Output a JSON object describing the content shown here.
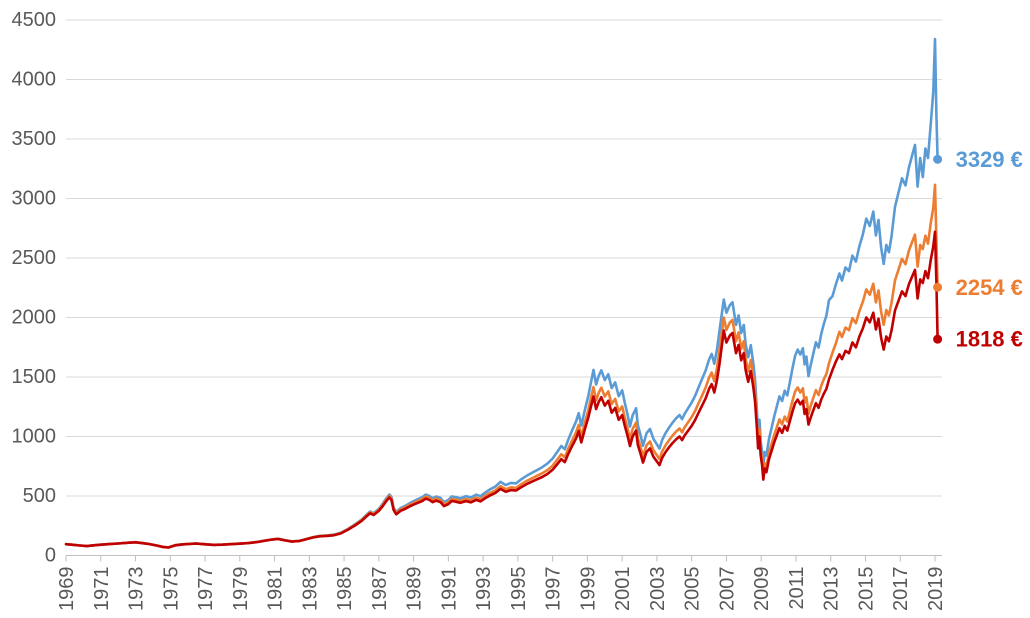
{
  "chart_data": {
    "type": "line",
    "title": "",
    "unit": "€",
    "legend_position": "right-end-labels",
    "grid": true,
    "y_axis": {
      "ticks": [
        0,
        500,
        1000,
        1500,
        2000,
        2500,
        3000,
        3500,
        4000,
        4500
      ],
      "range": [
        0,
        4500
      ]
    },
    "x_axis": {
      "tick_years": [
        1969,
        1971,
        1973,
        1975,
        1977,
        1979,
        1981,
        1983,
        1985,
        1987,
        1989,
        1991,
        1993,
        1995,
        1997,
        1999,
        2001,
        2003,
        2005,
        2007,
        2009,
        2011,
        2013,
        2015,
        2017,
        2019
      ],
      "range_years": [
        1969,
        2019.2
      ]
    },
    "series": [
      {
        "id": "blue",
        "color": "#5B9BD5",
        "end_label": "3329 €",
        "final_value": 3329
      },
      {
        "id": "orange",
        "color": "#ED7D31",
        "end_label": "2254 €",
        "final_value": 2254
      },
      {
        "id": "red",
        "color": "#C00000",
        "end_label": "1818 €",
        "final_value": 1818
      }
    ],
    "points_columns": [
      "year",
      "blue",
      "orange",
      "red"
    ],
    "points": [
      [
        1969.0,
        95,
        95,
        95
      ],
      [
        1969.4,
        90,
        90,
        90
      ],
      [
        1969.8,
        84,
        84,
        84
      ],
      [
        1970.2,
        79,
        79,
        79
      ],
      [
        1970.6,
        86,
        86,
        86
      ],
      [
        1971.0,
        91,
        91,
        91
      ],
      [
        1971.5,
        96,
        96,
        96
      ],
      [
        1972.0,
        101,
        101,
        101
      ],
      [
        1972.5,
        107,
        107,
        107
      ],
      [
        1973.0,
        112,
        112,
        111
      ],
      [
        1973.4,
        104,
        104,
        103
      ],
      [
        1973.8,
        97,
        97,
        96
      ],
      [
        1974.2,
        85,
        85,
        84
      ],
      [
        1974.6,
        72,
        72,
        71
      ],
      [
        1974.9,
        68,
        68,
        67
      ],
      [
        1975.3,
        87,
        87,
        86
      ],
      [
        1975.7,
        94,
        94,
        93
      ],
      [
        1976.1,
        98,
        98,
        97
      ],
      [
        1976.5,
        101,
        101,
        100
      ],
      [
        1977.0,
        95,
        95,
        94
      ],
      [
        1977.5,
        90,
        90,
        89
      ],
      [
        1978.0,
        92,
        92,
        91
      ],
      [
        1978.5,
        96,
        96,
        95
      ],
      [
        1979.0,
        100,
        100,
        99
      ],
      [
        1979.5,
        105,
        105,
        104
      ],
      [
        1980.0,
        114,
        114,
        113
      ],
      [
        1980.4,
        124,
        124,
        123
      ],
      [
        1980.8,
        134,
        134,
        133
      ],
      [
        1981.2,
        141,
        140,
        139
      ],
      [
        1981.6,
        129,
        128,
        127
      ],
      [
        1982.0,
        119,
        118,
        117
      ],
      [
        1982.4,
        123,
        122,
        121
      ],
      [
        1982.8,
        138,
        137,
        135
      ],
      [
        1983.2,
        154,
        153,
        151
      ],
      [
        1983.6,
        165,
        163,
        161
      ],
      [
        1984.0,
        169,
        167,
        165
      ],
      [
        1984.4,
        175,
        172,
        170
      ],
      [
        1984.8,
        191,
        188,
        185
      ],
      [
        1985.2,
        222,
        219,
        215
      ],
      [
        1985.6,
        259,
        255,
        250
      ],
      [
        1986.0,
        301,
        296,
        290
      ],
      [
        1986.3,
        343,
        337,
        330
      ],
      [
        1986.5,
        370,
        363,
        355
      ],
      [
        1986.7,
        355,
        348,
        340
      ],
      [
        1987.0,
        392,
        384,
        375
      ],
      [
        1987.2,
        430,
        420,
        410
      ],
      [
        1987.4,
        475,
        464,
        452
      ],
      [
        1987.6,
        513,
        500,
        487
      ],
      [
        1987.72,
        493,
        481,
        468
      ],
      [
        1987.85,
        403,
        393,
        382
      ],
      [
        1988.0,
        366,
        356,
        346
      ],
      [
        1988.25,
        398,
        387,
        376
      ],
      [
        1988.5,
        415,
        403,
        391
      ],
      [
        1988.75,
        437,
        424,
        411
      ],
      [
        1989.0,
        456,
        442,
        428
      ],
      [
        1989.25,
        473,
        458,
        443
      ],
      [
        1989.5,
        490,
        474,
        458
      ],
      [
        1989.7,
        512,
        495,
        478
      ],
      [
        1989.9,
        501,
        484,
        468
      ],
      [
        1990.1,
        481,
        464,
        448
      ],
      [
        1990.3,
        496,
        478,
        461
      ],
      [
        1990.55,
        483,
        465,
        449
      ],
      [
        1990.75,
        448,
        430,
        415
      ],
      [
        1991.0,
        467,
        448,
        432
      ],
      [
        1991.2,
        497,
        476,
        459
      ],
      [
        1991.45,
        489,
        468,
        451
      ],
      [
        1991.7,
        481,
        460,
        443
      ],
      [
        1992.0,
        498,
        475,
        457
      ],
      [
        1992.3,
        488,
        465,
        447
      ],
      [
        1992.6,
        511,
        486,
        467
      ],
      [
        1992.85,
        498,
        473,
        455
      ],
      [
        1993.1,
        527,
        500,
        480
      ],
      [
        1993.4,
        556,
        526,
        505
      ],
      [
        1993.7,
        579,
        547,
        525
      ],
      [
        1994.0,
        619,
        583,
        560
      ],
      [
        1994.3,
        592,
        557,
        535
      ],
      [
        1994.6,
        610,
        573,
        550
      ],
      [
        1994.9,
        606,
        568,
        545
      ],
      [
        1995.2,
        641,
        600,
        575
      ],
      [
        1995.5,
        670,
        627,
        600
      ],
      [
        1995.8,
        694,
        648,
        620
      ],
      [
        1996.1,
        718,
        670,
        640
      ],
      [
        1996.4,
        742,
        691,
        660
      ],
      [
        1996.7,
        772,
        718,
        685
      ],
      [
        1997.0,
        814,
        755,
        720
      ],
      [
        1997.25,
        867,
        803,
        765
      ],
      [
        1997.5,
        920,
        851,
        810
      ],
      [
        1997.7,
        893,
        825,
        785
      ],
      [
        1997.9,
        974,
        899,
        855
      ],
      [
        1998.1,
        1045,
        962,
        915
      ],
      [
        1998.35,
        1128,
        1036,
        985
      ],
      [
        1998.5,
        1196,
        1098,
        1045
      ],
      [
        1998.65,
        1092,
        1000,
        950
      ],
      [
        1998.85,
        1221,
        1116,
        1060
      ],
      [
        1999.05,
        1340,
        1222,
        1160
      ],
      [
        1999.2,
        1452,
        1322,
        1250
      ],
      [
        1999.35,
        1560,
        1415,
        1336
      ],
      [
        1999.5,
        1437,
        1303,
        1230
      ],
      [
        1999.65,
        1508,
        1367,
        1290
      ],
      [
        1999.8,
        1556,
        1410,
        1330
      ],
      [
        2000.0,
        1475,
        1336,
        1260
      ],
      [
        2000.2,
        1523,
        1379,
        1300
      ],
      [
        2000.4,
        1407,
        1273,
        1200
      ],
      [
        2000.6,
        1455,
        1316,
        1240
      ],
      [
        2000.8,
        1339,
        1210,
        1140
      ],
      [
        2001.0,
        1387,
        1253,
        1180
      ],
      [
        2001.15,
        1282,
        1158,
        1090
      ],
      [
        2001.3,
        1189,
        1073,
        1010
      ],
      [
        2001.45,
        1083,
        978,
        920
      ],
      [
        2001.6,
        1178,
        1063,
        1000
      ],
      [
        2001.8,
        1238,
        1117,
        1050
      ],
      [
        2001.9,
        1097,
        989,
        930
      ],
      [
        2002.05,
        1015,
        915,
        860
      ],
      [
        2002.2,
        922,
        831,
        781
      ],
      [
        2002.4,
        1027,
        926,
        870
      ],
      [
        2002.6,
        1063,
        958,
        900
      ],
      [
        2002.8,
        981,
        884,
        830
      ],
      [
        2003.0,
        934,
        842,
        790
      ],
      [
        2003.15,
        899,
        810,
        760
      ],
      [
        2003.3,
        970,
        874,
        820
      ],
      [
        2003.5,
        1029,
        927,
        870
      ],
      [
        2003.7,
        1076,
        970,
        910
      ],
      [
        2003.9,
        1117,
        1008,
        945
      ],
      [
        2004.1,
        1152,
        1040,
        975
      ],
      [
        2004.3,
        1181,
        1067,
        1000
      ],
      [
        2004.45,
        1146,
        1035,
        970
      ],
      [
        2004.6,
        1192,
        1078,
        1010
      ],
      [
        2004.8,
        1239,
        1121,
        1050
      ],
      [
        2005.0,
        1286,
        1164,
        1090
      ],
      [
        2005.2,
        1344,
        1217,
        1140
      ],
      [
        2005.4,
        1414,
        1281,
        1200
      ],
      [
        2005.6,
        1484,
        1345,
        1260
      ],
      [
        2005.8,
        1554,
        1410,
        1320
      ],
      [
        2006.0,
        1647,
        1495,
        1400
      ],
      [
        2006.15,
        1694,
        1538,
        1440
      ],
      [
        2006.3,
        1611,
        1464,
        1370
      ],
      [
        2006.45,
        1727,
        1571,
        1470
      ],
      [
        2006.6,
        1890,
        1720,
        1610
      ],
      [
        2006.85,
        2150,
        2000,
        1890
      ],
      [
        2007.0,
        2040,
        1895,
        1790
      ],
      [
        2007.2,
        2105,
        1959,
        1850
      ],
      [
        2007.35,
        2128,
        1980,
        1870
      ],
      [
        2007.55,
        1938,
        1800,
        1700
      ],
      [
        2007.7,
        2018,
        1875,
        1770
      ],
      [
        2007.85,
        1870,
        1737,
        1640
      ],
      [
        2008.0,
        1938,
        1801,
        1700
      ],
      [
        2008.1,
        1779,
        1653,
        1560
      ],
      [
        2008.25,
        1665,
        1547,
        1460
      ],
      [
        2008.4,
        1767,
        1643,
        1550
      ],
      [
        2008.55,
        1608,
        1495,
        1410
      ],
      [
        2008.65,
        1471,
        1368,
        1290
      ],
      [
        2008.75,
        1220,
        1135,
        1070
      ],
      [
        2008.82,
        1026,
        955,
        900
      ],
      [
        2008.9,
        1140,
        1061,
        1000
      ],
      [
        2008.97,
        958,
        891,
        840
      ],
      [
        2009.05,
        867,
        807,
        760
      ],
      [
        2009.12,
        760,
        678,
        638
      ],
      [
        2009.2,
        869,
        776,
        730
      ],
      [
        2009.3,
        840,
        745,
        700
      ],
      [
        2009.45,
        980,
        862,
        810
      ],
      [
        2009.6,
        1073,
        938,
        880
      ],
      [
        2009.75,
        1169,
        1013,
        950
      ],
      [
        2009.9,
        1253,
        1078,
        1010
      ],
      [
        2010.05,
        1337,
        1144,
        1070
      ],
      [
        2010.2,
        1298,
        1102,
        1030
      ],
      [
        2010.35,
        1385,
        1167,
        1090
      ],
      [
        2010.5,
        1345,
        1126,
        1050
      ],
      [
        2010.65,
        1458,
        1213,
        1130
      ],
      [
        2010.8,
        1573,
        1301,
        1210
      ],
      [
        2010.95,
        1678,
        1378,
        1280
      ],
      [
        2011.1,
        1730,
        1412,
        1310
      ],
      [
        2011.25,
        1689,
        1370,
        1270
      ],
      [
        2011.4,
        1742,
        1404,
        1300
      ],
      [
        2011.5,
        1606,
        1286,
        1190
      ],
      [
        2011.6,
        1672,
        1330,
        1230
      ],
      [
        2011.72,
        1507,
        1191,
        1100
      ],
      [
        2011.85,
        1601,
        1257,
        1160
      ],
      [
        2012.0,
        1696,
        1324,
        1220
      ],
      [
        2012.15,
        1792,
        1390,
        1280
      ],
      [
        2012.3,
        1748,
        1348,
        1240
      ],
      [
        2012.45,
        1860,
        1425,
        1310
      ],
      [
        2012.6,
        1945,
        1481,
        1360
      ],
      [
        2012.75,
        2016,
        1526,
        1400
      ],
      [
        2012.9,
        2146,
        1615,
        1480
      ],
      [
        2013.1,
        2180,
        1705,
        1560
      ],
      [
        2013.3,
        2280,
        1783,
        1630
      ],
      [
        2013.5,
        2370,
        1880,
        1690
      ],
      [
        2013.65,
        2310,
        1836,
        1650
      ],
      [
        2013.85,
        2420,
        1915,
        1720
      ],
      [
        2014.05,
        2390,
        1893,
        1700
      ],
      [
        2014.25,
        2520,
        1995,
        1790
      ],
      [
        2014.45,
        2470,
        1952,
        1750
      ],
      [
        2014.65,
        2600,
        2054,
        1840
      ],
      [
        2014.85,
        2700,
        2134,
        1910
      ],
      [
        2015.05,
        2830,
        2236,
        2000
      ],
      [
        2015.25,
        2770,
        2192,
        1960
      ],
      [
        2015.45,
        2890,
        2283,
        2040
      ],
      [
        2015.6,
        2690,
        2127,
        1900
      ],
      [
        2015.75,
        2820,
        2228,
        1990
      ],
      [
        2015.9,
        2590,
        2050,
        1830
      ],
      [
        2016.05,
        2450,
        1939,
        1730
      ],
      [
        2016.2,
        2610,
        2063,
        1840
      ],
      [
        2016.35,
        2550,
        2018,
        1800
      ],
      [
        2016.5,
        2680,
        2120,
        1890
      ],
      [
        2016.7,
        2930,
        2312,
        2060
      ],
      [
        2016.9,
        3050,
        2402,
        2140
      ],
      [
        2017.1,
        3170,
        2493,
        2220
      ],
      [
        2017.3,
        3110,
        2448,
        2180
      ],
      [
        2017.5,
        3260,
        2561,
        2280
      ],
      [
        2017.7,
        3370,
        2640,
        2350
      ],
      [
        2017.85,
        3450,
        2697,
        2400
      ],
      [
        2018.0,
        3100,
        2428,
        2160
      ],
      [
        2018.15,
        3340,
        2608,
        2320
      ],
      [
        2018.3,
        3180,
        2575,
        2290
      ],
      [
        2018.45,
        3420,
        2687,
        2390
      ],
      [
        2018.6,
        3340,
        2620,
        2330
      ],
      [
        2018.75,
        3620,
        2790,
        2480
      ],
      [
        2018.9,
        3900,
        2925,
        2600
      ],
      [
        2019.0,
        4340,
        3115,
        2720
      ],
      [
        2019.08,
        3700,
        2650,
        2300
      ],
      [
        2019.15,
        3329,
        2254,
        1818
      ]
    ]
  },
  "colors": {
    "background": "#FFFFFF",
    "gridline": "#D9D9D9",
    "axis_line": "#BFBFBF",
    "tick_label": "#595959"
  }
}
